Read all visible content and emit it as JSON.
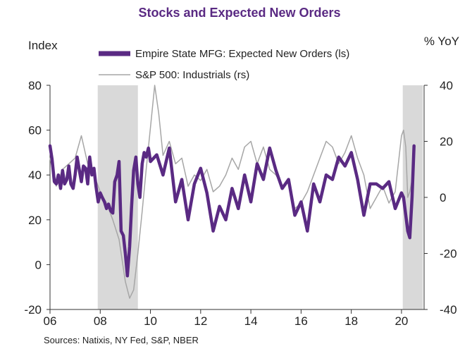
{
  "chart_data": {
    "type": "line",
    "title": "Stocks and Expected New Orders",
    "left_axis_label": "Index",
    "right_axis_label": "% YoY",
    "source": "Sources:   Natixis, NY Fed, S&P, NBER",
    "x_ticks": [
      "06",
      "08",
      "10",
      "12",
      "14",
      "16",
      "18",
      "20"
    ],
    "x_range": [
      2006.0,
      2020.9
    ],
    "y_left": {
      "ticks": [
        "80",
        "60",
        "40",
        "20",
        "0",
        "-20"
      ],
      "range": [
        -20,
        80
      ]
    },
    "y_right": {
      "ticks": [
        "40",
        "20",
        "0",
        "-20",
        "-40"
      ],
      "range": [
        -40,
        40
      ]
    },
    "recessions": [
      [
        2007.9,
        2009.5
      ],
      [
        2020.05,
        2020.85
      ]
    ],
    "colors": {
      "primary": "#5a2a83",
      "secondary": "#a6a6a6",
      "shading": "#d9d9d9",
      "title": "#5a2a83"
    },
    "grid": false,
    "legend_position": "top-center",
    "series": [
      {
        "name": "Empire State MFG: Expected New Orders (ls)",
        "axis": "left",
        "color": "#5a2a83",
        "x": [
          2006.0,
          2006.08,
          2006.17,
          2006.25,
          2006.33,
          2006.42,
          2006.5,
          2006.58,
          2006.67,
          2006.75,
          2006.83,
          2006.92,
          2007.0,
          2007.08,
          2007.17,
          2007.25,
          2007.33,
          2007.42,
          2007.5,
          2007.58,
          2007.67,
          2007.75,
          2007.83,
          2007.92,
          2008.0,
          2008.08,
          2008.17,
          2008.25,
          2008.33,
          2008.42,
          2008.5,
          2008.58,
          2008.67,
          2008.75,
          2008.83,
          2008.92,
          2009.0,
          2009.08,
          2009.17,
          2009.25,
          2009.33,
          2009.42,
          2009.5,
          2009.58,
          2009.67,
          2009.75,
          2009.83,
          2009.92,
          2010.0,
          2010.25,
          2010.5,
          2010.75,
          2011.0,
          2011.25,
          2011.5,
          2011.75,
          2012.0,
          2012.25,
          2012.5,
          2012.75,
          2013.0,
          2013.25,
          2013.5,
          2013.75,
          2014.0,
          2014.25,
          2014.5,
          2014.75,
          2015.0,
          2015.25,
          2015.5,
          2015.75,
          2016.0,
          2016.25,
          2016.5,
          2016.75,
          2017.0,
          2017.25,
          2017.5,
          2017.75,
          2018.0,
          2018.25,
          2018.5,
          2018.75,
          2019.0,
          2019.25,
          2019.5,
          2019.75,
          2020.0,
          2020.08,
          2020.17,
          2020.25,
          2020.33,
          2020.42,
          2020.5
        ],
        "values": [
          53,
          47,
          37,
          36,
          40,
          34,
          42,
          36,
          38,
          44,
          36,
          34,
          40,
          48,
          42,
          37,
          44,
          43,
          36,
          48,
          40,
          43,
          35,
          28,
          32,
          30,
          28,
          25,
          27,
          24,
          23,
          37,
          40,
          46,
          15,
          13,
          5,
          -5,
          8,
          26,
          42,
          48,
          36,
          30,
          45,
          50,
          48,
          52,
          46,
          49,
          40,
          52,
          28,
          38,
          20,
          36,
          43,
          32,
          15,
          26,
          20,
          34,
          25,
          40,
          28,
          45,
          38,
          52,
          42,
          34,
          38,
          22,
          28,
          15,
          36,
          28,
          40,
          38,
          48,
          44,
          50,
          38,
          22,
          36,
          36,
          34,
          37,
          25,
          32,
          30,
          22,
          15,
          12,
          30,
          53
        ]
      },
      {
        "name": "S&P 500: Industrials (rs)",
        "axis": "right",
        "color": "#a6a6a6",
        "x": [
          2006.0,
          2006.25,
          2006.5,
          2006.75,
          2007.0,
          2007.25,
          2007.5,
          2007.75,
          2008.0,
          2008.25,
          2008.5,
          2008.75,
          2009.0,
          2009.17,
          2009.33,
          2009.5,
          2009.67,
          2009.83,
          2010.0,
          2010.17,
          2010.33,
          2010.5,
          2010.75,
          2011.0,
          2011.25,
          2011.5,
          2011.75,
          2012.0,
          2012.25,
          2012.5,
          2012.75,
          2013.0,
          2013.25,
          2013.5,
          2013.75,
          2014.0,
          2014.25,
          2014.5,
          2014.75,
          2015.0,
          2015.25,
          2015.5,
          2015.75,
          2016.0,
          2016.25,
          2016.5,
          2016.75,
          2017.0,
          2017.25,
          2017.5,
          2017.75,
          2018.0,
          2018.25,
          2018.5,
          2018.75,
          2019.0,
          2019.25,
          2019.5,
          2019.75,
          2020.0,
          2020.08,
          2020.17,
          2020.25,
          2020.33,
          2020.5
        ],
        "values": [
          14,
          4,
          10,
          12,
          14,
          22,
          12,
          8,
          2,
          -2,
          -8,
          -15,
          -30,
          -36,
          -33,
          -20,
          -5,
          10,
          25,
          40,
          30,
          15,
          20,
          12,
          14,
          4,
          8,
          6,
          10,
          2,
          4,
          8,
          14,
          10,
          18,
          20,
          12,
          18,
          10,
          8,
          4,
          6,
          -4,
          -2,
          2,
          8,
          14,
          20,
          18,
          12,
          16,
          22,
          14,
          8,
          -4,
          0,
          4,
          -2,
          2,
          22,
          24,
          18,
          0,
          2,
          10
        ]
      }
    ]
  }
}
